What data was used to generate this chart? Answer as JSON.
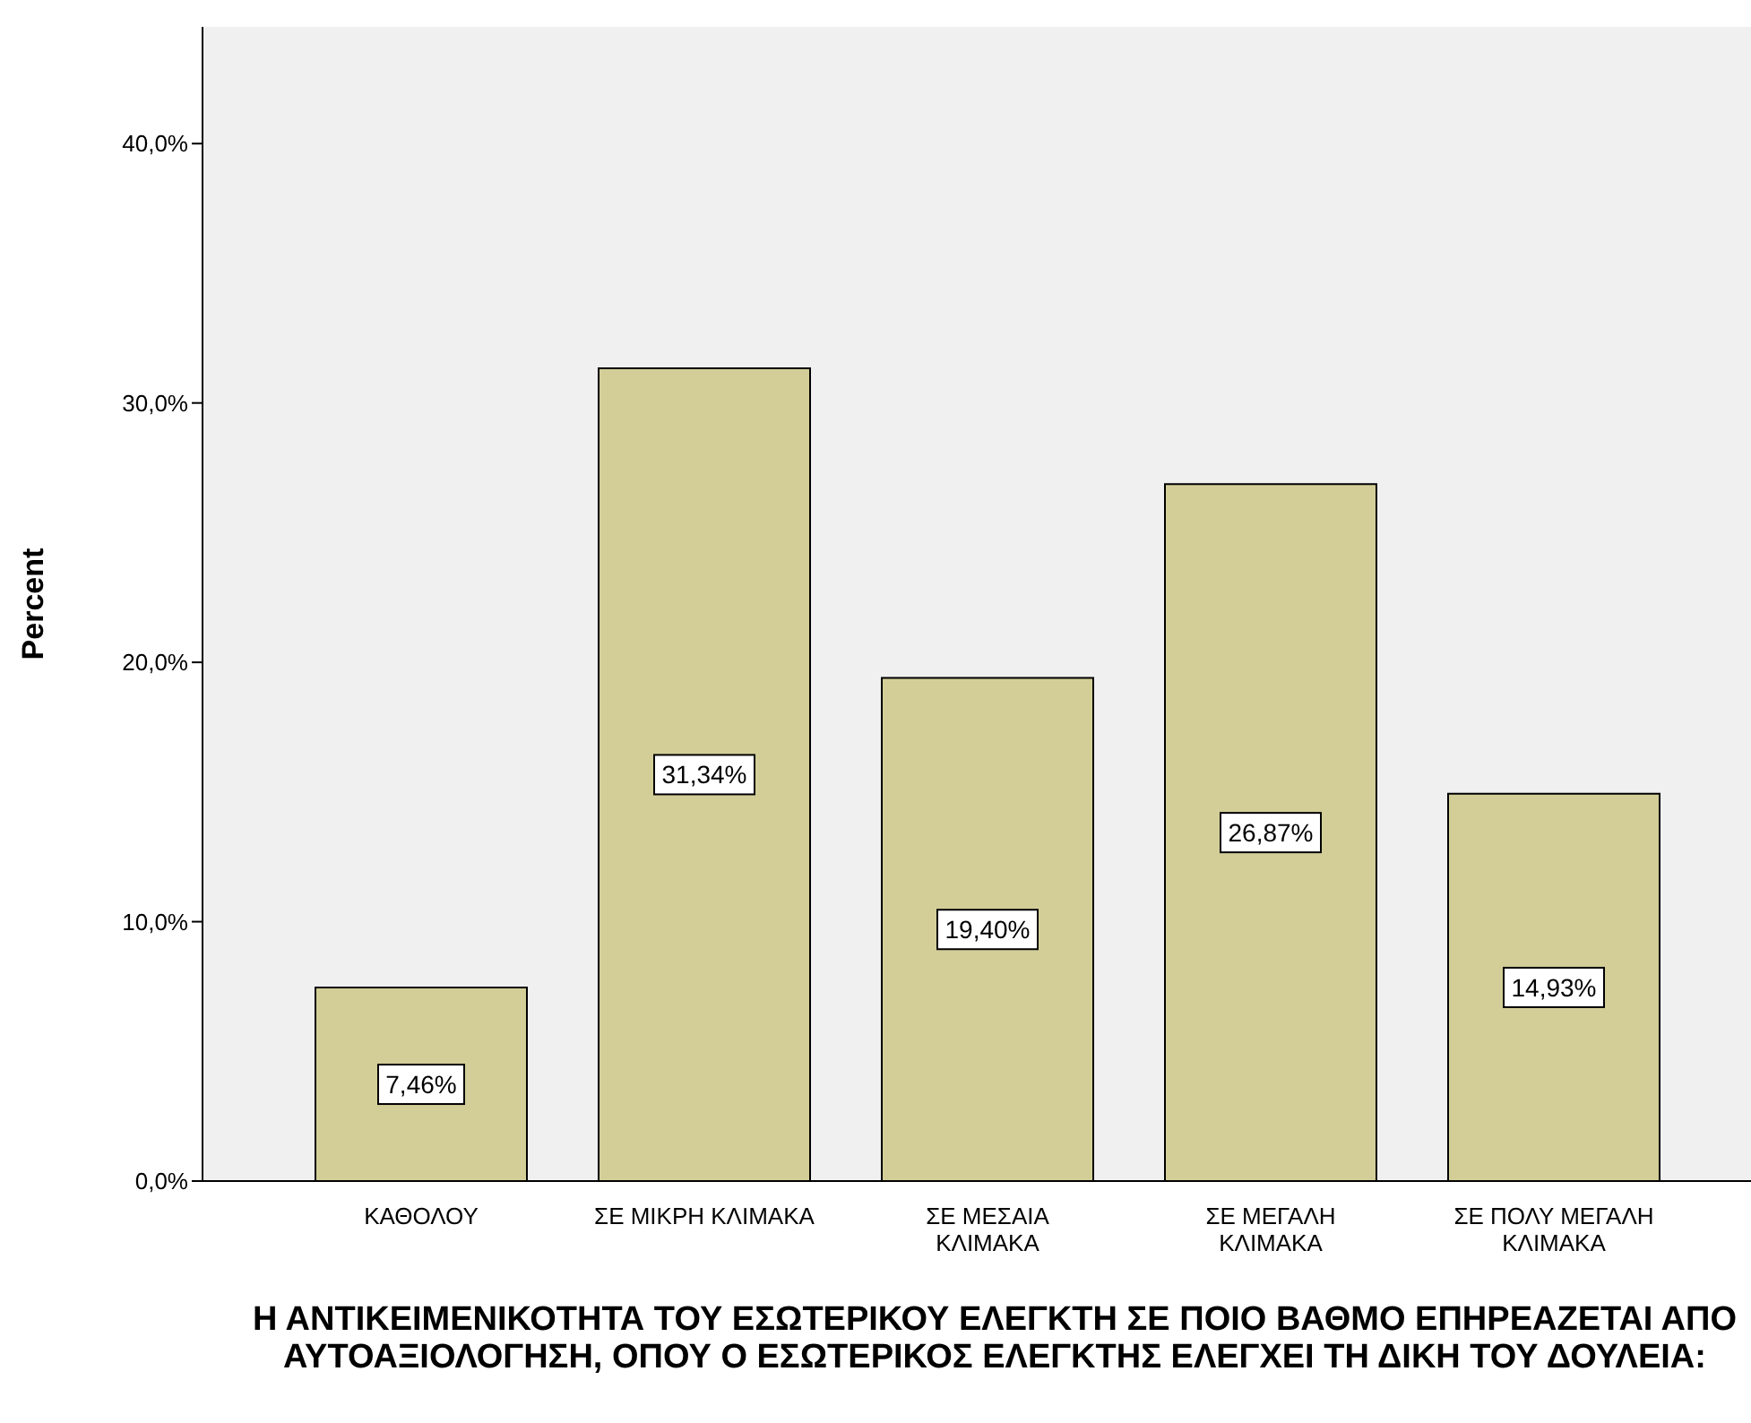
{
  "chart_data": {
    "type": "bar",
    "xlabel": "Η ΑΝΤΙΚΕΙΜΕΝΙΚΟΤΗΤΑ ΤΟΥ ΕΣΩΤΕΡΙΚΟΥ ΕΛΕΓΚΤΗ ΣΕ ΠΟΙΟ ΒΑΘΜΟ ΕΠΗΡΕΑΖΕΤΑΙ ΑΠΟ ΑΥΤΟΑΞΙΟΛΟΓΗΣΗ, ΟΠΟΥ Ο ΕΣΩΤΕΡΙΚΟΣ ΕΛΕΓΚΤΗΣ ΕΛΕΓΧΕΙ ΤΗ ΔΙΚΗ ΤΟΥ ΔΟΥΛΕΙΑ:",
    "ylabel": "Percent",
    "categories": [
      "ΚΑΘΟΛΟΥ",
      "ΣΕ ΜΙΚΡΗ ΚΛΙΜΑΚΑ",
      "ΣΕ ΜΕΣΑΙΑ ΚΛΙΜΑΚΑ",
      "ΣΕ ΜΕΓΑΛΗ ΚΛΙΜΑΚΑ",
      "ΣΕ ΠΟΛΥ ΜΕΓΑΛΗ ΚΛΙΜΑΚΑ"
    ],
    "values": [
      7.46,
      31.34,
      19.4,
      26.87,
      14.93
    ],
    "value_labels": [
      "7,46%",
      "31,34%",
      "19,40%",
      "26,87%",
      "14,93%"
    ],
    "color": "#d3ce98",
    "ylim": [
      0,
      44.5
    ],
    "yticks": [
      {
        "value": 0,
        "label": "0,0%"
      },
      {
        "value": 10,
        "label": "10,0%"
      },
      {
        "value": 20,
        "label": "20,0%"
      },
      {
        "value": 30,
        "label": "30,0%"
      },
      {
        "value": 40,
        "label": "40,0%"
      }
    ],
    "grid": false,
    "legend": false
  }
}
